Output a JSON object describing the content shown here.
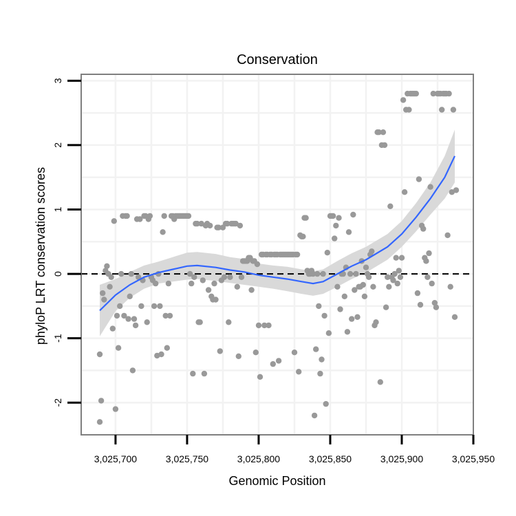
{
  "chart_data": {
    "type": "scatter",
    "title": "Conservation",
    "xlabel": "Genomic Position",
    "ylabel": "phyloP LRT conservation scores",
    "xlim": [
      3025676,
      3025950
    ],
    "ylim": [
      -2.5,
      3.1
    ],
    "xticks": [
      3025700,
      3025750,
      3025800,
      3025850,
      3025900,
      3025950
    ],
    "xtick_labels": [
      "3,025,700",
      "3,025,750",
      "3,025,800",
      "3,025,850",
      "3,025,900",
      "3,025,950"
    ],
    "yticks": [
      -2,
      -1,
      0,
      1,
      2,
      3
    ],
    "ytick_labels": [
      "-2",
      "-1",
      "0",
      "1",
      "2",
      "3"
    ],
    "reference_line": {
      "y": 0,
      "style": "dashed"
    },
    "grid": true,
    "colors": {
      "points": "#999999",
      "smooth": "#3366ff",
      "ribbon": "#d9d9d9",
      "panel_border": "#7f7f7f",
      "grid": "#f2f2f2"
    },
    "series": [
      {
        "name": "scores",
        "points": [
          [
            3025689,
            -1.25
          ],
          [
            3025689,
            -2.3
          ],
          [
            3025690,
            -1.97
          ],
          [
            3025691,
            -0.3
          ],
          [
            3025692,
            -0.4
          ],
          [
            3025693,
            0.05
          ],
          [
            3025694,
            0.12
          ],
          [
            3025695,
            0.0
          ],
          [
            3025696,
            -0.2
          ],
          [
            3025697,
            -0.05
          ],
          [
            3025698,
            -0.85
          ],
          [
            3025699,
            0.82
          ],
          [
            3025700,
            -2.1
          ],
          [
            3025701,
            -0.65
          ],
          [
            3025702,
            -1.15
          ],
          [
            3025703,
            -0.5
          ],
          [
            3025704,
            0.0
          ],
          [
            3025705,
            0.9
          ],
          [
            3025706,
            -0.65
          ],
          [
            3025707,
            0.9
          ],
          [
            3025708,
            0.9
          ],
          [
            3025709,
            -0.7
          ],
          [
            3025710,
            -0.35
          ],
          [
            3025711,
            0.0
          ],
          [
            3025712,
            -1.5
          ],
          [
            3025713,
            -0.7
          ],
          [
            3025714,
            -0.8
          ],
          [
            3025715,
            0.85
          ],
          [
            3025716,
            -0.05
          ],
          [
            3025717,
            0.85
          ],
          [
            3025718,
            -0.5
          ],
          [
            3025719,
            -0.1
          ],
          [
            3025720,
            0.9
          ],
          [
            3025721,
            0.9
          ],
          [
            3025722,
            -0.75
          ],
          [
            3025723,
            0.85
          ],
          [
            3025724,
            0.9
          ],
          [
            3025725,
            -0.05
          ],
          [
            3025726,
            -0.1
          ],
          [
            3025727,
            -0.5
          ],
          [
            3025728,
            -0.15
          ],
          [
            3025729,
            -1.27
          ],
          [
            3025730,
            0.0
          ],
          [
            3025731,
            -0.5
          ],
          [
            3025732,
            -1.25
          ],
          [
            3025733,
            0.65
          ],
          [
            3025734,
            0.9
          ],
          [
            3025735,
            -0.65
          ],
          [
            3025736,
            -1.15
          ],
          [
            3025737,
            -0.15
          ],
          [
            3025738,
            -0.65
          ],
          [
            3025739,
            0.9
          ],
          [
            3025740,
            0.9
          ],
          [
            3025741,
            0.85
          ],
          [
            3025742,
            0.9
          ],
          [
            3025743,
            0.9
          ],
          [
            3025744,
            0.9
          ],
          [
            3025745,
            0.9
          ],
          [
            3025746,
            0.9
          ],
          [
            3025747,
            0.9
          ],
          [
            3025748,
            0.9
          ],
          [
            3025749,
            0.9
          ],
          [
            3025750,
            0.9
          ],
          [
            3025751,
            0.9
          ],
          [
            3025752,
            0.0
          ],
          [
            3025753,
            -0.15
          ],
          [
            3025754,
            -1.55
          ],
          [
            3025755,
            -0.05
          ],
          [
            3025756,
            0.78
          ],
          [
            3025757,
            0.78
          ],
          [
            3025758,
            -0.75
          ],
          [
            3025759,
            -0.75
          ],
          [
            3025760,
            0.78
          ],
          [
            3025761,
            -0.1
          ],
          [
            3025762,
            -1.55
          ],
          [
            3025763,
            0.75
          ],
          [
            3025764,
            0.78
          ],
          [
            3025765,
            -0.25
          ],
          [
            3025766,
            0.75
          ],
          [
            3025767,
            -0.35
          ],
          [
            3025768,
            -0.4
          ],
          [
            3025769,
            -0.15
          ],
          [
            3025770,
            -0.4
          ],
          [
            3025771,
            0.72
          ],
          [
            3025772,
            0.72
          ],
          [
            3025773,
            -1.2
          ],
          [
            3025774,
            -0.1
          ],
          [
            3025775,
            0.72
          ],
          [
            3025776,
            -0.05
          ],
          [
            3025777,
            0.78
          ],
          [
            3025778,
            0.78
          ],
          [
            3025779,
            -0.75
          ],
          [
            3025780,
            -0.05
          ],
          [
            3025781,
            0.78
          ],
          [
            3025782,
            0.78
          ],
          [
            3025783,
            0.78
          ],
          [
            3025784,
            0.78
          ],
          [
            3025785,
            -0.2
          ],
          [
            3025786,
            -1.28
          ],
          [
            3025787,
            0.75
          ],
          [
            3025788,
            -0.05
          ],
          [
            3025789,
            0.2
          ],
          [
            3025790,
            0.2
          ],
          [
            3025791,
            0.2
          ],
          [
            3025792,
            0.2
          ],
          [
            3025793,
            0.25
          ],
          [
            3025794,
            0.25
          ],
          [
            3025795,
            -0.25
          ],
          [
            3025796,
            0.2
          ],
          [
            3025797,
            0.2
          ],
          [
            3025798,
            -1.22
          ],
          [
            3025799,
            0.15
          ],
          [
            3025800,
            -0.8
          ],
          [
            3025801,
            -1.6
          ],
          [
            3025802,
            0.3
          ],
          [
            3025803,
            0.3
          ],
          [
            3025804,
            -0.8
          ],
          [
            3025805,
            0.3
          ],
          [
            3025806,
            0.3
          ],
          [
            3025807,
            -0.8
          ],
          [
            3025808,
            0.3
          ],
          [
            3025809,
            0.3
          ],
          [
            3025810,
            -1.4
          ],
          [
            3025811,
            0.3
          ],
          [
            3025812,
            0.3
          ],
          [
            3025813,
            0.3
          ],
          [
            3025814,
            -1.35
          ],
          [
            3025815,
            0.3
          ],
          [
            3025816,
            0.3
          ],
          [
            3025817,
            0.3
          ],
          [
            3025818,
            0.3
          ],
          [
            3025819,
            0.3
          ],
          [
            3025820,
            0.3
          ],
          [
            3025821,
            0.3
          ],
          [
            3025822,
            0.3
          ],
          [
            3025823,
            0.3
          ],
          [
            3025824,
            0.3
          ],
          [
            3025825,
            -1.22
          ],
          [
            3025826,
            0.3
          ],
          [
            3025827,
            0.3
          ],
          [
            3025828,
            -1.52
          ],
          [
            3025829,
            0.6
          ],
          [
            3025830,
            0.58
          ],
          [
            3025831,
            0.58
          ],
          [
            3025832,
            0.87
          ],
          [
            3025833,
            0.87
          ],
          [
            3025834,
            0.05
          ],
          [
            3025835,
            0.0
          ],
          [
            3025836,
            0.0
          ],
          [
            3025837,
            0.05
          ],
          [
            3025838,
            0.0
          ],
          [
            3025839,
            -2.2
          ],
          [
            3025840,
            -1.17
          ],
          [
            3025841,
            0.0
          ],
          [
            3025842,
            -0.5
          ],
          [
            3025843,
            -1.55
          ],
          [
            3025844,
            -1.33
          ],
          [
            3025845,
            0.0
          ],
          [
            3025846,
            -0.65
          ],
          [
            3025847,
            -2.02
          ],
          [
            3025848,
            0.33
          ],
          [
            3025849,
            -0.92
          ],
          [
            3025850,
            0.9
          ],
          [
            3025851,
            0.9
          ],
          [
            3025852,
            0.9
          ],
          [
            3025853,
            0.55
          ],
          [
            3025854,
            0.75
          ],
          [
            3025855,
            -0.2
          ],
          [
            3025856,
            0.87
          ],
          [
            3025857,
            -0.55
          ],
          [
            3025858,
            0.0
          ],
          [
            3025859,
            0.0
          ],
          [
            3025860,
            -0.35
          ],
          [
            3025861,
            0.1
          ],
          [
            3025862,
            -0.9
          ],
          [
            3025863,
            0.65
          ],
          [
            3025864,
            0.0
          ],
          [
            3025865,
            -0.7
          ],
          [
            3025866,
            0.92
          ],
          [
            3025867,
            -0.25
          ],
          [
            3025868,
            0.0
          ],
          [
            3025869,
            -0.67
          ],
          [
            3025870,
            -0.2
          ],
          [
            3025871,
            -0.2
          ],
          [
            3025872,
            0.2
          ],
          [
            3025873,
            -0.17
          ],
          [
            3025874,
            -0.35
          ],
          [
            3025875,
            0.1
          ],
          [
            3025876,
            0.0
          ],
          [
            3025877,
            -0.05
          ],
          [
            3025878,
            0.3
          ],
          [
            3025879,
            0.35
          ],
          [
            3025880,
            -0.2
          ],
          [
            3025881,
            -0.8
          ],
          [
            3025882,
            -0.75
          ],
          [
            3025883,
            2.2
          ],
          [
            3025884,
            2.2
          ],
          [
            3025885,
            -1.68
          ],
          [
            3025886,
            2.0
          ],
          [
            3025887,
            2.2
          ],
          [
            3025888,
            2.0
          ],
          [
            3025889,
            -0.52
          ],
          [
            3025890,
            -0.05
          ],
          [
            3025891,
            -0.2
          ],
          [
            3025892,
            1.05
          ],
          [
            3025893,
            -0.05
          ],
          [
            3025894,
            -0.1
          ],
          [
            3025895,
            0.0
          ],
          [
            3025896,
            0.25
          ],
          [
            3025897,
            -0.15
          ],
          [
            3025898,
            0.05
          ],
          [
            3025899,
            -0.05
          ],
          [
            3025900,
            0.25
          ],
          [
            3025901,
            2.7
          ],
          [
            3025902,
            1.27
          ],
          [
            3025903,
            2.55
          ],
          [
            3025904,
            2.8
          ],
          [
            3025905,
            2.55
          ],
          [
            3025906,
            2.8
          ],
          [
            3025907,
            2.8
          ],
          [
            3025908,
            2.8
          ],
          [
            3025909,
            2.8
          ],
          [
            3025910,
            2.8
          ],
          [
            3025911,
            -0.3
          ],
          [
            3025912,
            1.47
          ],
          [
            3025913,
            -0.48
          ],
          [
            3025914,
            0.75
          ],
          [
            3025915,
            0.7
          ],
          [
            3025916,
            0.25
          ],
          [
            3025917,
            0.2
          ],
          [
            3025918,
            -0.05
          ],
          [
            3025919,
            0.32
          ],
          [
            3025920,
            1.35
          ],
          [
            3025921,
            -0.15
          ],
          [
            3025922,
            2.8
          ],
          [
            3025923,
            -0.45
          ],
          [
            3025924,
            -0.52
          ],
          [
            3025925,
            2.8
          ],
          [
            3025926,
            2.8
          ],
          [
            3025927,
            2.8
          ],
          [
            3025928,
            2.55
          ],
          [
            3025929,
            2.8
          ],
          [
            3025930,
            2.8
          ],
          [
            3025931,
            2.8
          ],
          [
            3025932,
            0.6
          ],
          [
            3025933,
            2.8
          ],
          [
            3025934,
            -0.2
          ],
          [
            3025935,
            1.27
          ],
          [
            3025936,
            2.55
          ],
          [
            3025937,
            -0.67
          ],
          [
            3025938,
            1.3
          ]
        ]
      },
      {
        "name": "smooth",
        "x": [
          3025689,
          3025700,
          3025710,
          3025720,
          3025730,
          3025740,
          3025750,
          3025757,
          3025770,
          3025780,
          3025790,
          3025800,
          3025810,
          3025820,
          3025830,
          3025838,
          3025845,
          3025855,
          3025865,
          3025875,
          3025890,
          3025900,
          3025910,
          3025920,
          3025930,
          3025937
        ],
        "y": [
          -0.57,
          -0.33,
          -0.17,
          -0.05,
          0.02,
          0.07,
          0.12,
          0.13,
          0.1,
          0.06,
          0.03,
          -0.02,
          -0.05,
          -0.08,
          -0.12,
          -0.15,
          -0.12,
          0.0,
          0.12,
          0.22,
          0.42,
          0.62,
          0.88,
          1.17,
          1.5,
          1.83
        ],
        "ylower": [
          -0.97,
          -0.58,
          -0.37,
          -0.23,
          -0.15,
          -0.12,
          -0.09,
          -0.08,
          -0.11,
          -0.14,
          -0.17,
          -0.2,
          -0.23,
          -0.27,
          -0.31,
          -0.34,
          -0.31,
          -0.2,
          -0.08,
          0.02,
          0.22,
          0.42,
          0.66,
          0.92,
          1.17,
          1.42
        ],
        "yupper": [
          -0.17,
          -0.08,
          0.03,
          0.13,
          0.19,
          0.26,
          0.33,
          0.34,
          0.31,
          0.26,
          0.23,
          0.16,
          0.13,
          0.11,
          0.07,
          0.04,
          0.07,
          0.2,
          0.32,
          0.42,
          0.62,
          0.82,
          1.1,
          1.42,
          1.83,
          2.24
        ]
      }
    ]
  }
}
